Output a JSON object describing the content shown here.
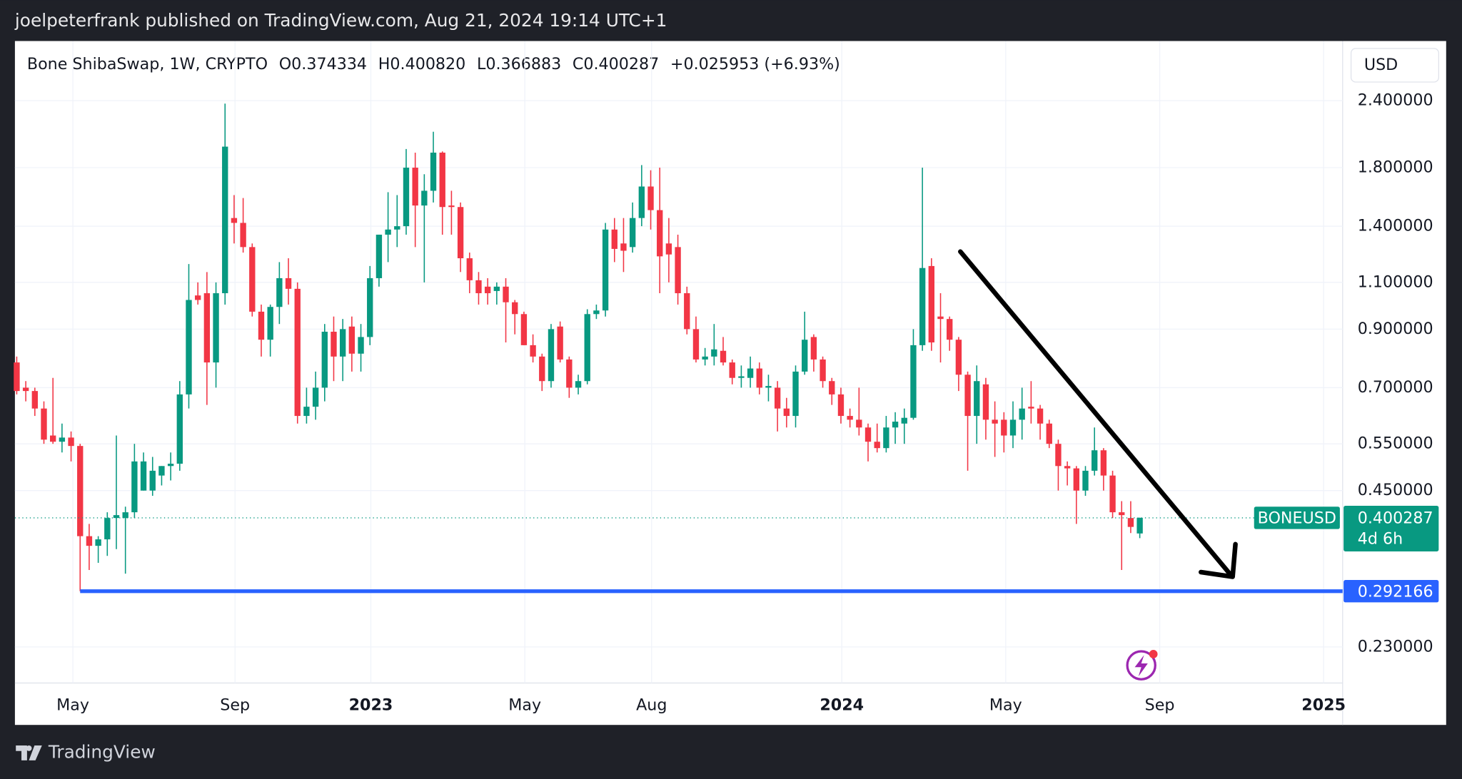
{
  "header": {
    "title": "joelpeterfrank published on TradingView.com, Aug 21, 2024 19:14 UTC+1"
  },
  "footer": {
    "brand": "TradingView"
  },
  "chart_data": {
    "type": "candlestick",
    "legend": {
      "symbol": "Bone ShibaSwap, 1W, CRYPTO",
      "items": [
        "O0.374334",
        "H0.400820",
        "L0.366883",
        "C0.400287",
        "+0.025953 (+6.93%)"
      ]
    },
    "currency": "USD",
    "symbol": "BONEUSD",
    "countdown": "4d 6h",
    "log_scale": true,
    "grid": true,
    "up_color": "#089981",
    "down_color": "#f23645",
    "open": [
      0.78,
      0.7,
      0.69,
      0.64,
      0.57,
      0.555,
      0.565,
      0.545,
      0.37,
      0.355,
      0.365,
      0.4,
      0.4,
      0.41,
      0.45,
      0.45,
      0.48,
      0.5,
      0.505,
      0.68,
      1.04,
      1.05,
      0.78,
      1.05,
      1.45,
      1.42,
      1.28,
      0.97,
      0.86,
      0.99,
      1.12,
      1.07,
      0.62,
      0.645,
      0.7,
      0.89,
      0.8,
      0.91,
      0.81,
      0.87,
      1.12,
      1.35,
      1.38,
      1.4,
      1.8,
      1.53,
      1.63,
      1.92,
      1.53,
      1.52,
      1.22,
      1.11,
      1.08,
      1.06,
      1.08,
      1.01,
      0.96,
      0.84,
      0.8,
      0.72,
      0.91,
      0.79,
      0.7,
      0.72,
      0.96,
      0.975,
      1.38,
      1.3,
      1.28,
      1.45,
      1.66,
      1.5,
      1.3,
      1.28,
      1.05,
      0.9,
      0.79,
      0.8,
      0.82,
      0.78,
      0.73,
      0.73,
      0.76,
      0.7,
      0.7,
      0.64,
      0.62,
      0.75,
      0.87,
      0.79,
      0.72,
      0.68,
      0.62,
      0.61,
      0.59,
      0.555,
      0.54,
      0.59,
      0.6,
      0.615,
      0.84,
      1.18,
      0.95,
      0.94,
      0.86,
      0.74,
      0.62,
      0.71,
      0.61,
      0.61,
      0.57,
      0.61,
      0.645,
      0.64,
      0.6,
      0.55,
      0.5,
      0.495,
      0.45,
      0.49,
      0.535,
      0.48,
      0.41,
      0.4,
      0.374334
    ],
    "high": [
      0.8,
      0.72,
      0.7,
      0.66,
      0.73,
      0.6,
      0.58,
      0.55,
      0.39,
      0.37,
      0.41,
      0.57,
      0.42,
      0.55,
      0.53,
      0.52,
      0.5,
      0.53,
      0.72,
      1.19,
      1.1,
      1.15,
      1.1,
      2.37,
      1.6,
      1.58,
      1.3,
      1.0,
      1.0,
      1.2,
      1.22,
      1.1,
      0.7,
      0.75,
      0.92,
      0.95,
      0.94,
      0.95,
      0.92,
      1.18,
      1.35,
      1.62,
      1.6,
      1.95,
      1.92,
      1.75,
      2.1,
      1.93,
      1.63,
      1.55,
      1.25,
      1.15,
      1.12,
      1.1,
      1.12,
      1.02,
      0.97,
      0.88,
      0.81,
      0.92,
      0.93,
      0.8,
      0.74,
      0.98,
      1.0,
      1.42,
      1.45,
      1.45,
      1.55,
      1.82,
      1.78,
      1.8,
      1.45,
      1.35,
      1.08,
      0.95,
      0.83,
      0.92,
      0.87,
      0.79,
      0.77,
      0.8,
      0.78,
      0.74,
      0.72,
      0.67,
      0.77,
      0.97,
      0.88,
      0.8,
      0.73,
      0.7,
      0.64,
      0.7,
      0.6,
      0.6,
      0.62,
      0.63,
      0.64,
      0.9,
      1.8,
      1.22,
      1.05,
      0.95,
      0.87,
      0.75,
      0.77,
      0.73,
      0.66,
      0.63,
      0.66,
      0.7,
      0.72,
      0.65,
      0.61,
      0.56,
      0.51,
      0.5,
      0.5,
      0.59,
      0.54,
      0.49,
      0.43,
      0.43,
      0.40082
    ],
    "low": [
      0.68,
      0.66,
      0.62,
      0.55,
      0.55,
      0.53,
      0.51,
      0.292166,
      0.32,
      0.33,
      0.34,
      0.35,
      0.315,
      0.4,
      0.45,
      0.44,
      0.46,
      0.47,
      0.49,
      0.64,
      1.0,
      0.65,
      0.7,
      1.0,
      1.3,
      1.25,
      0.95,
      0.8,
      0.8,
      0.92,
      1.0,
      0.6,
      0.6,
      0.61,
      0.66,
      0.72,
      0.72,
      0.75,
      0.75,
      0.84,
      1.08,
      1.2,
      1.28,
      1.35,
      1.28,
      1.1,
      1.55,
      1.35,
      1.35,
      1.15,
      1.05,
      1.0,
      1.0,
      1.0,
      0.85,
      0.88,
      0.84,
      0.78,
      0.69,
      0.7,
      0.78,
      0.67,
      0.68,
      0.71,
      0.94,
      0.95,
      1.2,
      1.15,
      1.25,
      1.4,
      1.38,
      1.05,
      1.1,
      1.0,
      0.88,
      0.78,
      0.77,
      0.77,
      0.77,
      0.71,
      0.7,
      0.7,
      0.68,
      0.66,
      0.58,
      0.59,
      0.59,
      0.74,
      0.75,
      0.7,
      0.65,
      0.6,
      0.59,
      0.57,
      0.51,
      0.53,
      0.53,
      0.55,
      0.55,
      0.61,
      0.82,
      0.82,
      0.78,
      0.82,
      0.69,
      0.49,
      0.55,
      0.56,
      0.52,
      0.53,
      0.54,
      0.56,
      0.6,
      0.56,
      0.54,
      0.45,
      0.46,
      0.39,
      0.44,
      0.48,
      0.45,
      0.4,
      0.32,
      0.375,
      0.366883
    ],
    "close": [
      0.69,
      0.69,
      0.64,
      0.56,
      0.555,
      0.565,
      0.545,
      0.37,
      0.355,
      0.365,
      0.4,
      0.405,
      0.41,
      0.51,
      0.51,
      0.49,
      0.5,
      0.505,
      0.68,
      1.02,
      1.02,
      0.78,
      1.05,
      1.97,
      1.42,
      1.28,
      0.97,
      0.86,
      0.99,
      1.12,
      1.07,
      0.62,
      0.645,
      0.7,
      0.89,
      0.8,
      0.9,
      0.81,
      0.87,
      1.12,
      1.35,
      1.38,
      1.4,
      1.8,
      1.53,
      1.63,
      1.92,
      1.52,
      1.52,
      1.22,
      1.11,
      1.05,
      1.05,
      1.08,
      1.01,
      0.96,
      0.84,
      0.8,
      0.72,
      0.9,
      0.79,
      0.7,
      0.72,
      0.96,
      0.975,
      1.38,
      1.27,
      1.26,
      1.45,
      1.66,
      1.5,
      1.23,
      1.24,
      1.05,
      0.9,
      0.79,
      0.8,
      0.825,
      0.78,
      0.73,
      0.735,
      0.76,
      0.7,
      0.705,
      0.64,
      0.62,
      0.75,
      0.86,
      0.79,
      0.72,
      0.68,
      0.62,
      0.61,
      0.59,
      0.555,
      0.54,
      0.59,
      0.605,
      0.615,
      0.84,
      1.17,
      0.85,
      0.94,
      0.86,
      0.74,
      0.62,
      0.72,
      0.61,
      0.6,
      0.57,
      0.61,
      0.64,
      0.64,
      0.6,
      0.55,
      0.5,
      0.495,
      0.45,
      0.49,
      0.535,
      0.48,
      0.41,
      0.405,
      0.385,
      0.400287
    ],
    "hline": {
      "value": 0.292166,
      "start": 7,
      "color": "#2962ff"
    },
    "xlim": [
      -0.2,
      146.4
    ],
    "xticks": [
      {
        "value": 6.2,
        "label": "May"
      },
      {
        "value": 24.1,
        "label": "Sep"
      },
      {
        "value": 39.1,
        "label": "2023"
      },
      {
        "value": 56.1,
        "label": "May"
      },
      {
        "value": 70.1,
        "label": "Aug"
      },
      {
        "value": 91.1,
        "label": "2024"
      },
      {
        "value": 109.2,
        "label": "May"
      },
      {
        "value": 126.2,
        "label": "Sep"
      },
      {
        "value": 144.3,
        "label": "2025"
      }
    ],
    "ylim": [
      0.197,
      3.1
    ],
    "yticks": [
      {
        "value": 2.4,
        "label": "2.400000"
      },
      {
        "value": 1.8,
        "label": "1.800000"
      },
      {
        "value": 1.4,
        "label": "1.400000"
      },
      {
        "value": 1.1,
        "label": "1.100000"
      },
      {
        "value": 0.9,
        "label": "0.900000"
      },
      {
        "value": 0.7,
        "label": "0.700000"
      },
      {
        "value": 0.55,
        "label": "0.550000"
      },
      {
        "value": 0.45,
        "label": "0.450000"
      },
      {
        "value": 0.23,
        "label": "0.230000"
      }
    ]
  }
}
